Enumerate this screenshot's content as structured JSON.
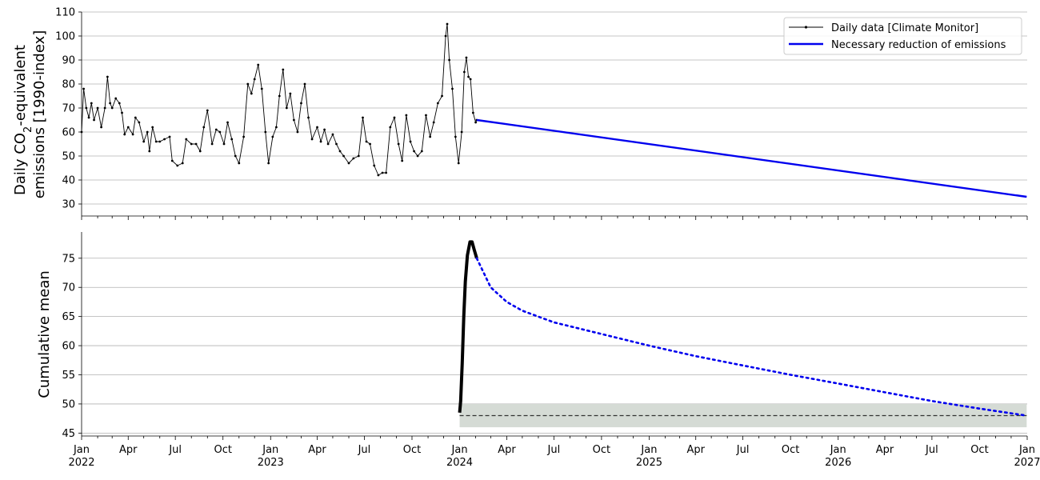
{
  "chart_data": [
    {
      "type": "line",
      "ylabel_line1": "Daily CO",
      "ylabel_sub": "2",
      "ylabel_line1_rest": "-equivalent",
      "ylabel_line2": "emissions [1990-index]",
      "ylim": [
        25,
        110
      ],
      "yticks": [
        30,
        40,
        50,
        60,
        70,
        80,
        90,
        100,
        110
      ],
      "grid": true,
      "legend": "top-right",
      "series": [
        {
          "name": "Daily data [Climate Monitor]",
          "color": "#000000",
          "style": "line-with-dots",
          "points": [
            [
              "2022-01-01",
              60
            ],
            [
              "2022-01-05",
              78
            ],
            [
              "2022-01-10",
              70
            ],
            [
              "2022-01-15",
              66
            ],
            [
              "2022-01-20",
              72
            ],
            [
              "2022-01-25",
              65
            ],
            [
              "2022-02-01",
              70
            ],
            [
              "2022-02-08",
              62
            ],
            [
              "2022-02-15",
              70
            ],
            [
              "2022-02-20",
              83
            ],
            [
              "2022-02-25",
              72
            ],
            [
              "2022-03-01",
              70
            ],
            [
              "2022-03-08",
              74
            ],
            [
              "2022-03-15",
              72
            ],
            [
              "2022-03-20",
              68
            ],
            [
              "2022-03-25",
              59
            ],
            [
              "2022-04-01",
              62
            ],
            [
              "2022-04-10",
              59
            ],
            [
              "2022-04-15",
              66
            ],
            [
              "2022-04-22",
              64
            ],
            [
              "2022-05-01",
              56
            ],
            [
              "2022-05-08",
              60
            ],
            [
              "2022-05-12",
              52
            ],
            [
              "2022-05-18",
              62
            ],
            [
              "2022-05-25",
              56
            ],
            [
              "2022-06-01",
              56
            ],
            [
              "2022-06-10",
              57
            ],
            [
              "2022-06-20",
              58
            ],
            [
              "2022-06-25",
              48
            ],
            [
              "2022-07-05",
              46
            ],
            [
              "2022-07-15",
              47
            ],
            [
              "2022-07-22",
              57
            ],
            [
              "2022-08-01",
              55
            ],
            [
              "2022-08-10",
              55
            ],
            [
              "2022-08-18",
              52
            ],
            [
              "2022-08-25",
              62
            ],
            [
              "2022-09-01",
              69
            ],
            [
              "2022-09-10",
              55
            ],
            [
              "2022-09-18",
              61
            ],
            [
              "2022-09-25",
              60
            ],
            [
              "2022-10-03",
              55
            ],
            [
              "2022-10-10",
              64
            ],
            [
              "2022-10-18",
              57
            ],
            [
              "2022-10-25",
              50
            ],
            [
              "2022-11-01",
              47
            ],
            [
              "2022-11-10",
              58
            ],
            [
              "2022-11-18",
              80
            ],
            [
              "2022-11-25",
              76
            ],
            [
              "2022-12-01",
              82
            ],
            [
              "2022-12-08",
              88
            ],
            [
              "2022-12-15",
              78
            ],
            [
              "2022-12-22",
              60
            ],
            [
              "2022-12-28",
              47
            ],
            [
              "2023-01-05",
              58
            ],
            [
              "2023-01-12",
              62
            ],
            [
              "2023-01-18",
              75
            ],
            [
              "2023-01-25",
              86
            ],
            [
              "2023-02-01",
              70
            ],
            [
              "2023-02-08",
              76
            ],
            [
              "2023-02-15",
              65
            ],
            [
              "2023-02-22",
              60
            ],
            [
              "2023-03-01",
              72
            ],
            [
              "2023-03-08",
              80
            ],
            [
              "2023-03-15",
              66
            ],
            [
              "2023-03-22",
              57
            ],
            [
              "2023-04-01",
              62
            ],
            [
              "2023-04-08",
              56
            ],
            [
              "2023-04-15",
              61
            ],
            [
              "2023-04-22",
              55
            ],
            [
              "2023-05-01",
              59
            ],
            [
              "2023-05-08",
              55
            ],
            [
              "2023-05-15",
              52
            ],
            [
              "2023-05-22",
              50
            ],
            [
              "2023-06-01",
              47
            ],
            [
              "2023-06-10",
              49
            ],
            [
              "2023-06-20",
              50
            ],
            [
              "2023-06-28",
              66
            ],
            [
              "2023-07-05",
              56
            ],
            [
              "2023-07-12",
              55
            ],
            [
              "2023-07-20",
              46
            ],
            [
              "2023-07-28",
              42
            ],
            [
              "2023-08-05",
              43
            ],
            [
              "2023-08-12",
              43
            ],
            [
              "2023-08-20",
              62
            ],
            [
              "2023-08-28",
              66
            ],
            [
              "2023-09-05",
              55
            ],
            [
              "2023-09-12",
              48
            ],
            [
              "2023-09-20",
              67
            ],
            [
              "2023-09-28",
              56
            ],
            [
              "2023-10-05",
              52
            ],
            [
              "2023-10-12",
              50
            ],
            [
              "2023-10-20",
              52
            ],
            [
              "2023-10-28",
              67
            ],
            [
              "2023-11-05",
              58
            ],
            [
              "2023-11-12",
              64
            ],
            [
              "2023-11-20",
              72
            ],
            [
              "2023-11-28",
              75
            ],
            [
              "2023-12-05",
              100
            ],
            [
              "2023-12-08",
              105
            ],
            [
              "2023-12-12",
              90
            ],
            [
              "2023-12-18",
              78
            ],
            [
              "2023-12-24",
              58
            ],
            [
              "2023-12-30",
              47
            ],
            [
              "2024-01-05",
              60
            ],
            [
              "2024-01-10",
              85
            ],
            [
              "2024-01-14",
              91
            ],
            [
              "2024-01-18",
              83
            ],
            [
              "2024-01-22",
              82
            ],
            [
              "2024-01-27",
              68
            ],
            [
              "2024-02-01",
              64
            ],
            [
              "2024-02-03",
              65
            ]
          ]
        },
        {
          "name": "Necessary reduction of emissions",
          "color": "#0000ee",
          "style": "solid",
          "points": [
            [
              "2024-02-03",
              65
            ],
            [
              "2026-12-31",
              33
            ]
          ]
        }
      ]
    },
    {
      "type": "line",
      "ylabel": "Cumulative mean",
      "ylim": [
        44.5,
        79.5
      ],
      "yticks": [
        45,
        50,
        55,
        60,
        65,
        70,
        75
      ],
      "grid": true,
      "x_tick_labels": [
        [
          "Jan",
          "2022"
        ],
        [
          "Apr",
          ""
        ],
        [
          "Jul",
          ""
        ],
        [
          "Oct",
          ""
        ],
        [
          "Jan",
          "2023"
        ],
        [
          "Apr",
          ""
        ],
        [
          "Jul",
          ""
        ],
        [
          "Oct",
          ""
        ],
        [
          "Jan",
          "2024"
        ],
        [
          "Apr",
          ""
        ],
        [
          "Jul",
          ""
        ],
        [
          "Oct",
          ""
        ],
        [
          "Jan",
          "2025"
        ],
        [
          "Apr",
          ""
        ],
        [
          "Jul",
          ""
        ],
        [
          "Oct",
          ""
        ],
        [
          "Jan",
          "2026"
        ],
        [
          "Apr",
          ""
        ],
        [
          "Jul",
          ""
        ],
        [
          "Oct",
          ""
        ],
        [
          "Jan",
          "2027"
        ]
      ],
      "xlim": [
        "2022-01-01",
        "2027-01-01"
      ],
      "series": [
        {
          "name": "cumulative-mean-observed",
          "color": "#000000",
          "style": "thick-solid",
          "points": [
            [
              "2024-01-01",
              48.5
            ],
            [
              "2024-01-03",
              50.5
            ],
            [
              "2024-01-06",
              57
            ],
            [
              "2024-01-09",
              65
            ],
            [
              "2024-01-12",
              71
            ],
            [
              "2024-01-16",
              75.5
            ],
            [
              "2024-01-21",
              77.8
            ],
            [
              "2024-01-25",
              77.8
            ],
            [
              "2024-01-29",
              76.5
            ],
            [
              "2024-02-03",
              75
            ]
          ]
        },
        {
          "name": "cumulative-mean-projected",
          "color": "#0000ee",
          "style": "dotted",
          "points": [
            [
              "2024-02-03",
              75
            ],
            [
              "2024-03-01",
              70
            ],
            [
              "2024-04-01",
              67.5
            ],
            [
              "2024-05-01",
              66
            ],
            [
              "2024-07-01",
              64
            ],
            [
              "2024-10-01",
              62
            ],
            [
              "2025-01-01",
              60
            ],
            [
              "2025-04-01",
              58.2
            ],
            [
              "2025-07-01",
              56.6
            ],
            [
              "2025-10-01",
              55
            ],
            [
              "2026-01-01",
              53.5
            ],
            [
              "2026-04-01",
              52
            ],
            [
              "2026-07-01",
              50.5
            ],
            [
              "2026-10-01",
              49.2
            ],
            [
              "2026-12-31",
              48
            ]
          ]
        }
      ],
      "target_band": {
        "x_from": "2024-01-01",
        "x_to": "2026-12-31",
        "y_from": 46,
        "y_to": 50,
        "color": "#d5dbd5"
      },
      "target_line": {
        "y": 48,
        "x_from": "2024-01-01",
        "x_to": "2026-12-31",
        "color": "#333333",
        "style": "dashed"
      }
    }
  ]
}
